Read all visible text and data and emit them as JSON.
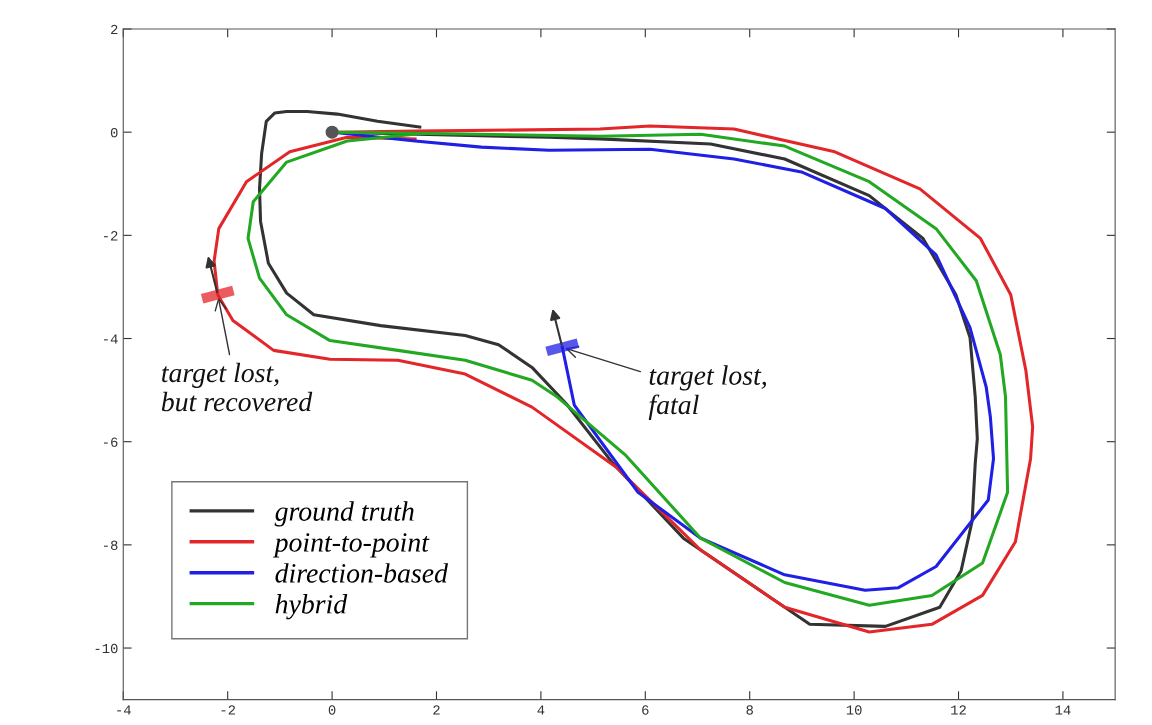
{
  "chart_data": {
    "type": "line",
    "xlim": [
      -4,
      15
    ],
    "ylim": [
      -11,
      2
    ],
    "xticks": [
      -4,
      -2,
      0,
      2,
      4,
      6,
      8,
      10,
      12,
      14
    ],
    "yticks": [
      -10,
      -8,
      -6,
      -4,
      -2,
      0,
      2
    ],
    "grid": false,
    "legend": "bottom left",
    "marker": "none",
    "line_style": "solid",
    "series": [
      {
        "name": "ground truth",
        "color": "#333333",
        "x": [
          0,
          1.64,
          4.16,
          5.13,
          7.25,
          8.67,
          10.29,
          11.32,
          11.95,
          12.22,
          12.32,
          12.36,
          12.32,
          12.26,
          12.05,
          11.64,
          10.6,
          9.15,
          6.73,
          5.38,
          4.49,
          3.83,
          3.19,
          2.55,
          0.93,
          -0.35,
          -0.87,
          -1.22,
          -1.37,
          -1.39,
          -1.35,
          -1.26,
          -1.1,
          -0.87,
          -0.48,
          0.1,
          0.87,
          1.68
        ],
        "values": [
          0,
          -0.04,
          -0.1,
          -0.13,
          -0.23,
          -0.52,
          -1.23,
          -2.06,
          -3.15,
          -3.98,
          -5.13,
          -5.94,
          -6.42,
          -7.54,
          -8.5,
          -9.21,
          -9.58,
          -9.54,
          -7.87,
          -6.42,
          -5.27,
          -4.56,
          -4.12,
          -3.94,
          -3.75,
          -3.54,
          -3.12,
          -2.54,
          -1.73,
          -1.1,
          -0.42,
          0.21,
          0.37,
          0.4,
          0.4,
          0.35,
          0.21,
          0.1
        ]
      },
      {
        "name": "point-to-point",
        "color": "#e3262a",
        "x": [
          0,
          1.64,
          5.13,
          6.09,
          7.7,
          9.63,
          11.26,
          12.42,
          13.0,
          13.29,
          13.42,
          13.38,
          13.09,
          12.46,
          11.49,
          10.29,
          8.67,
          7.06,
          5.45,
          3.83,
          2.55,
          1.26,
          -0.04,
          -1.12,
          -1.9,
          -2.19,
          -2.26,
          -2.17,
          -1.64,
          -0.81,
          0.29,
          1.59
        ],
        "values": [
          0,
          0.02,
          0.06,
          0.12,
          0.06,
          -0.38,
          -1.1,
          -2.06,
          -3.15,
          -4.62,
          -5.71,
          -6.33,
          -7.94,
          -8.98,
          -9.54,
          -9.69,
          -9.21,
          -8.1,
          -6.5,
          -5.33,
          -4.69,
          -4.42,
          -4.4,
          -4.23,
          -3.65,
          -3.15,
          -2.5,
          -1.87,
          -0.96,
          -0.38,
          -0.1,
          -0.13
        ]
      },
      {
        "name": "direction-based",
        "color": "#1f1fe6",
        "x": [
          0,
          1.59,
          2.86,
          4.16,
          6.09,
          7.7,
          8.99,
          10.6,
          11.57,
          12.22,
          12.53,
          12.61,
          12.67,
          12.57,
          11.57,
          10.85,
          10.21,
          8.67,
          7.06,
          5.86,
          4.64,
          4.41
        ],
        "values": [
          0,
          -0.17,
          -0.29,
          -0.35,
          -0.33,
          -0.52,
          -0.77,
          -1.48,
          -2.38,
          -3.79,
          -4.94,
          -5.52,
          -6.33,
          -7.13,
          -8.42,
          -8.83,
          -8.88,
          -8.58,
          -7.87,
          -6.98,
          -5.29,
          -4.17
        ]
      },
      {
        "name": "hybrid",
        "color": "#22a822",
        "x": [
          0,
          1.59,
          5.13,
          7.06,
          8.67,
          10.29,
          11.57,
          12.34,
          12.8,
          12.9,
          12.94,
          12.46,
          11.49,
          10.29,
          8.67,
          7.06,
          5.61,
          4.31,
          3.83,
          2.55,
          1.26,
          -0.04,
          -0.87,
          -1.39,
          -1.61,
          -1.51,
          -0.87,
          0.29,
          1.59
        ],
        "values": [
          0,
          -0.02,
          -0.08,
          -0.04,
          -0.27,
          -0.96,
          -1.87,
          -2.88,
          -4.31,
          -5.13,
          -6.98,
          -8.35,
          -8.98,
          -9.17,
          -8.73,
          -7.87,
          -6.25,
          -5.13,
          -4.81,
          -4.42,
          -4.23,
          -4.04,
          -3.54,
          -2.83,
          -2.06,
          -1.35,
          -0.58,
          -0.17,
          -0.04
        ]
      },
      {
        "type": "scatter",
        "color": "#555555",
        "marker": "circle",
        "x": [
          0
        ],
        "values": [
          0
        ]
      }
    ],
    "annotations": [
      {
        "text": "target lost,\nbut recovered",
        "x": -2.19,
        "y": -3.15
      },
      {
        "text": "target lost,\nfatal",
        "x": 4.41,
        "y": -4.17
      }
    ]
  }
}
